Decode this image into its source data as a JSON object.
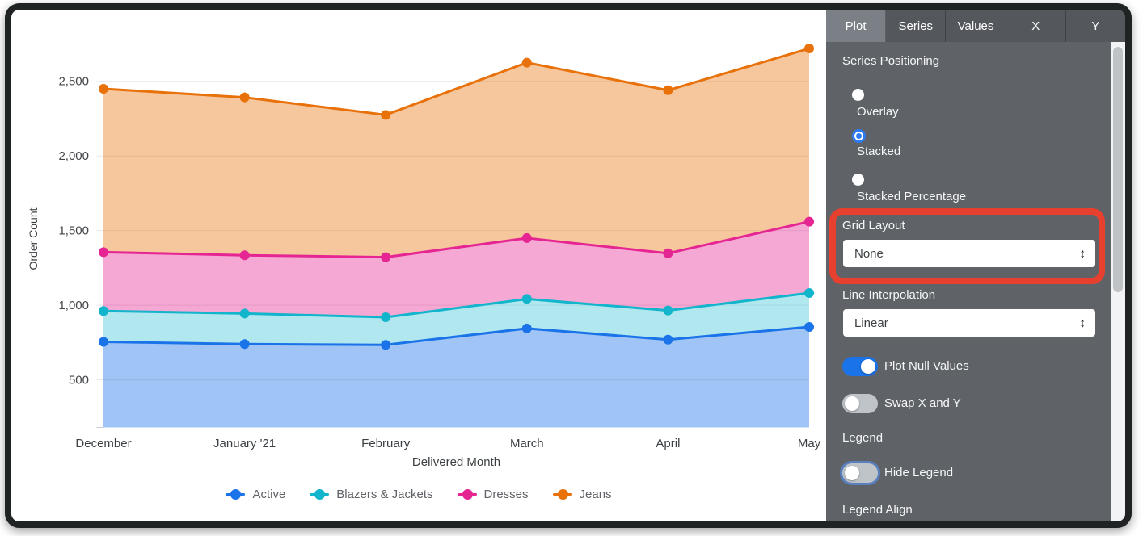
{
  "chart_data": {
    "type": "area",
    "stacking": "stacked",
    "xlabel": "Delivered Month",
    "ylabel": "Order Count",
    "categories": [
      "December",
      "January '21",
      "February",
      "March",
      "April",
      "May"
    ],
    "series": [
      {
        "name": "Active",
        "color": "#1a73e8",
        "fill": "rgba(26,115,232,0.42)",
        "values": [
          755,
          740,
          735,
          845,
          770,
          855
        ]
      },
      {
        "name": "Blazers & Jackets",
        "color": "#12b5cb",
        "fill": "rgba(18,181,203,0.33)",
        "values": [
          207,
          205,
          185,
          197,
          195,
          227
        ]
      },
      {
        "name": "Dresses",
        "color": "#e52592",
        "fill": "rgba(229,37,146,0.40)",
        "values": [
          394,
          390,
          402,
          408,
          383,
          478
        ]
      },
      {
        "name": "Jeans",
        "color": "#e8710a",
        "fill": "rgba(232,113,10,0.40)",
        "values": [
          1094,
          1057,
          953,
          1175,
          1092,
          1160
        ]
      }
    ],
    "y_ticks": [
      {
        "value": 500,
        "label": "500"
      },
      {
        "value": 1000,
        "label": "1,000"
      },
      {
        "value": 1500,
        "label": "1,500"
      },
      {
        "value": 2000,
        "label": "2,000"
      },
      {
        "value": 2500,
        "label": "2,500"
      }
    ],
    "y_range": [
      182,
      2893
    ],
    "grid": true,
    "legend_position": "bottom"
  },
  "panel": {
    "tabs": [
      {
        "label": "Plot",
        "active": true
      },
      {
        "label": "Series",
        "active": false
      },
      {
        "label": "Values",
        "active": false
      },
      {
        "label": "X",
        "active": false
      },
      {
        "label": "Y",
        "active": false
      }
    ],
    "series_positioning": {
      "label": "Series Positioning",
      "options": [
        {
          "label": "Overlay",
          "selected": false
        },
        {
          "label": "Stacked",
          "selected": true
        },
        {
          "label": "Stacked Percentage",
          "selected": false
        }
      ]
    },
    "grid_layout": {
      "label": "Grid Layout",
      "value": "None",
      "highlighted": true
    },
    "line_interpolation": {
      "label": "Line Interpolation",
      "value": "Linear"
    },
    "toggles": [
      {
        "label": "Plot Null Values",
        "on": true
      },
      {
        "label": "Swap X and Y",
        "on": false
      }
    ],
    "legend_section": {
      "header": "Legend",
      "hide_legend": {
        "label": "Hide Legend",
        "on": false
      },
      "legend_align_label": "Legend Align"
    }
  },
  "icons": {
    "select_arrow": "↕"
  },
  "colors": {
    "accent_blue": "#1a73e8",
    "highlight_red": "#e8402f",
    "panel_bg": "#5f6368",
    "gridline": "#e7e7e7"
  }
}
